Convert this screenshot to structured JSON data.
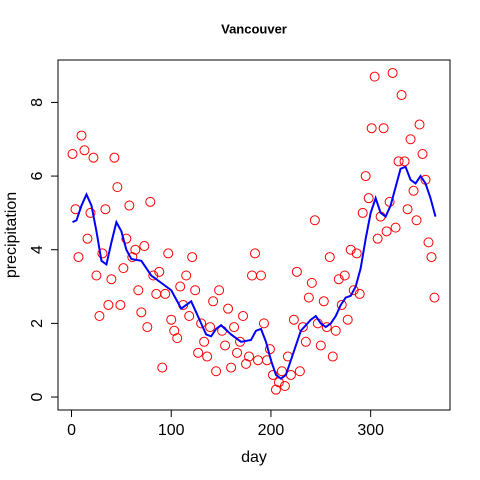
{
  "chart_data": {
    "type": "scatter",
    "title": "Vancouver",
    "xlabel": "day",
    "ylabel": "precipitation",
    "xlim": [
      -13.56,
      379.56
    ],
    "ylim": [
      -0.352,
      9.152
    ],
    "xticks": [
      0,
      100,
      200,
      300
    ],
    "yticks": [
      0,
      2,
      4,
      6,
      8
    ],
    "series": [
      {
        "type": "scatter",
        "color": "#ff0000",
        "x": [
          1,
          4,
          7,
          10,
          13,
          16,
          19,
          22,
          25,
          28,
          31,
          34,
          37,
          40,
          43,
          46,
          49,
          52,
          55,
          58,
          61,
          64,
          67,
          70,
          73,
          76,
          79,
          82,
          85,
          88,
          91,
          94,
          97,
          100,
          103,
          106,
          109,
          112,
          115,
          118,
          121,
          124,
          127,
          130,
          133,
          136,
          139,
          142,
          145,
          148,
          151,
          154,
          157,
          160,
          163,
          166,
          169,
          172,
          175,
          178,
          181,
          184,
          187,
          190,
          193,
          196,
          199,
          202,
          205,
          208,
          211,
          214,
          217,
          220,
          223,
          226,
          229,
          232,
          235,
          238,
          241,
          244,
          247,
          250,
          253,
          256,
          259,
          262,
          265,
          268,
          271,
          274,
          277,
          280,
          283,
          286,
          289,
          292,
          295,
          298,
          301,
          304,
          307,
          310,
          313,
          316,
          319,
          322,
          325,
          328,
          331,
          334,
          337,
          340,
          343,
          346,
          349,
          352,
          355,
          358,
          361,
          364
        ],
        "values": [
          6.6,
          5.1,
          3.8,
          7.1,
          6.7,
          4.3,
          5.0,
          6.5,
          3.3,
          2.2,
          3.9,
          5.1,
          2.5,
          3.2,
          6.5,
          5.7,
          2.5,
          3.5,
          4.3,
          5.2,
          3.8,
          4.0,
          2.9,
          2.3,
          4.1,
          1.9,
          5.3,
          3.3,
          2.8,
          3.4,
          0.8,
          2.8,
          3.9,
          2.1,
          1.8,
          1.6,
          3.0,
          2.5,
          3.3,
          2.2,
          3.8,
          2.9,
          1.2,
          2.0,
          1.5,
          1.1,
          1.9,
          2.6,
          0.7,
          2.9,
          1.8,
          1.4,
          2.4,
          0.8,
          1.9,
          1.2,
          1.5,
          2.2,
          0.9,
          1.1,
          3.3,
          3.9,
          1.0,
          3.3,
          2.0,
          1.0,
          1.3,
          0.6,
          0.2,
          0.4,
          0.7,
          0.3,
          1.1,
          0.6,
          2.1,
          3.4,
          0.7,
          1.9,
          1.5,
          2.7,
          3.1,
          4.8,
          2.0,
          1.4,
          2.6,
          1.9,
          3.8,
          1.1,
          1.8,
          3.2,
          2.5,
          3.3,
          2.1,
          4.0,
          2.9,
          3.9,
          2.8,
          5.0,
          6.0,
          5.4,
          7.3,
          8.7,
          4.3,
          4.9,
          7.3,
          4.5,
          5.3,
          8.8,
          4.6,
          6.4,
          8.2,
          6.4,
          5.1,
          7.0,
          5.6,
          4.8,
          7.4,
          6.6,
          5.9,
          4.2,
          3.8,
          2.7
        ]
      },
      {
        "type": "line",
        "color": "#0000ff",
        "x": [
          1,
          5,
          10,
          15,
          20,
          25,
          30,
          35,
          40,
          45,
          50,
          55,
          60,
          70,
          80,
          90,
          100,
          110,
          120,
          125,
          130,
          135,
          140,
          145,
          150,
          160,
          170,
          180,
          185,
          190,
          195,
          200,
          205,
          210,
          215,
          220,
          225,
          230,
          240,
          245,
          250,
          255,
          260,
          265,
          270,
          275,
          280,
          285,
          290,
          295,
          300,
          305,
          310,
          315,
          320,
          325,
          330,
          335,
          340,
          345,
          350,
          355,
          360,
          365
        ],
        "values": [
          4.75,
          4.8,
          5.2,
          5.5,
          5.2,
          4.5,
          3.7,
          3.6,
          4.2,
          4.75,
          4.5,
          4.0,
          3.75,
          3.7,
          3.3,
          3.1,
          2.9,
          2.4,
          2.6,
          2.3,
          2.0,
          1.7,
          1.65,
          1.85,
          1.95,
          1.7,
          1.5,
          1.55,
          1.8,
          1.85,
          1.5,
          1.0,
          0.6,
          0.5,
          0.6,
          1.0,
          1.4,
          1.8,
          2.1,
          2.2,
          2.0,
          1.9,
          2.0,
          2.2,
          2.5,
          2.7,
          2.75,
          3.0,
          3.5,
          4.3,
          5.0,
          5.4,
          5.0,
          4.9,
          5.2,
          5.7,
          6.2,
          6.25,
          5.9,
          5.8,
          6.0,
          5.8,
          5.4,
          4.9
        ]
      }
    ]
  }
}
